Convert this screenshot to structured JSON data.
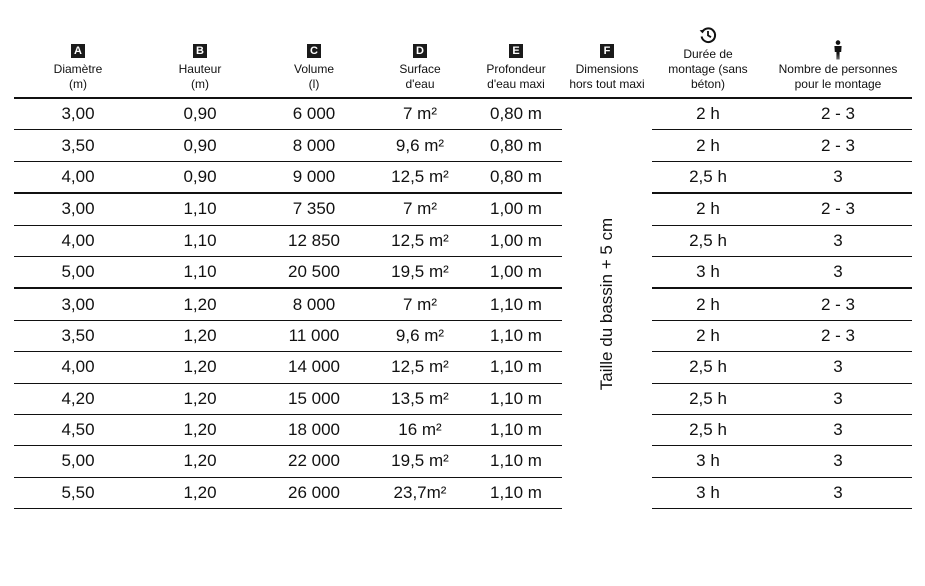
{
  "headers": [
    {
      "badge": "A",
      "lines": [
        "Diamètre",
        "(m)"
      ]
    },
    {
      "badge": "B",
      "lines": [
        "Hauteur",
        "(m)"
      ]
    },
    {
      "badge": "C",
      "lines": [
        "Volume",
        "(l)"
      ]
    },
    {
      "badge": "D",
      "lines": [
        "Surface",
        "d'eau"
      ]
    },
    {
      "badge": "E",
      "lines": [
        "Profondeur",
        "d'eau maxi"
      ]
    },
    {
      "badge": "F",
      "lines": [
        "Dimensions",
        "hors tout maxi"
      ]
    },
    {
      "icon": "clock-icon",
      "lines": [
        "Durée de",
        "montage (sans",
        "béton)"
      ]
    },
    {
      "icon": "person-icon",
      "lines": [
        "Nombre de personnes",
        "pour le montage"
      ]
    }
  ],
  "dimensions_note": "Taille du bassin + 5 cm",
  "group_starts": [
    0,
    3,
    6
  ],
  "rows": [
    [
      "3,00",
      "0,90",
      "6 000",
      "7 m²",
      "0,80 m",
      "2 h",
      "2 - 3"
    ],
    [
      "3,50",
      "0,90",
      "8 000",
      "9,6 m²",
      "0,80 m",
      "2 h",
      "2 - 3"
    ],
    [
      "4,00",
      "0,90",
      "9 000",
      "12,5 m²",
      "0,80 m",
      "2,5 h",
      "3"
    ],
    [
      "3,00",
      "1,10",
      "7 350",
      "7 m²",
      "1,00 m",
      "2 h",
      "2 - 3"
    ],
    [
      "4,00",
      "1,10",
      "12 850",
      "12,5 m²",
      "1,00 m",
      "2,5 h",
      "3"
    ],
    [
      "5,00",
      "1,10",
      "20 500",
      "19,5 m²",
      "1,00 m",
      "3 h",
      "3"
    ],
    [
      "3,00",
      "1,20",
      "8 000",
      "7 m²",
      "1,10 m",
      "2 h",
      "2 - 3"
    ],
    [
      "3,50",
      "1,20",
      "11 000",
      "9,6 m²",
      "1,10 m",
      "2 h",
      "2 - 3"
    ],
    [
      "4,00",
      "1,20",
      "14 000",
      "12,5 m²",
      "1,10 m",
      "2,5 h",
      "3"
    ],
    [
      "4,20",
      "1,20",
      "15 000",
      "13,5 m²",
      "1,10 m",
      "2,5 h",
      "3"
    ],
    [
      "4,50",
      "1,20",
      "18 000",
      "16 m²",
      "1,10 m",
      "2,5 h",
      "3"
    ],
    [
      "5,00",
      "1,20",
      "22 000",
      "19,5 m²",
      "1,10 m",
      "3 h",
      "3"
    ],
    [
      "5,50",
      "1,20",
      "26 000",
      "23,7m²",
      "1,10 m",
      "3 h",
      "3"
    ]
  ]
}
